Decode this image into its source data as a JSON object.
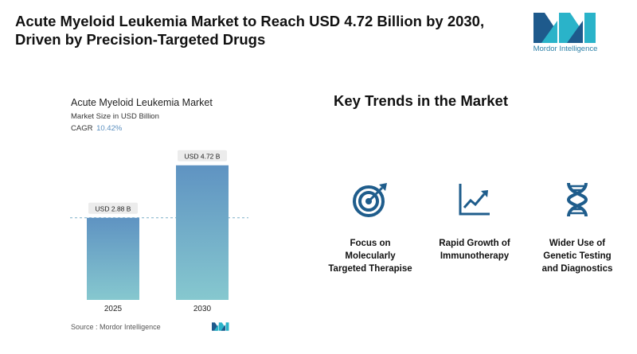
{
  "header": {
    "title_line1": "Acute Myeloid Leukemia Market to Reach USD 4.72 Billion by 2030,",
    "title_line2": "Driven by Precision-Targeted Drugs"
  },
  "logo": {
    "text": "Mordor Intelligence",
    "colors": [
      "#1e5a8c",
      "#2ab3c9"
    ]
  },
  "chart_data": {
    "type": "bar",
    "title": "Acute Myeloid Leukemia Market",
    "subtitle": "Market Size in USD Billion",
    "cagr_label": "CAGR",
    "cagr_value": "10.42%",
    "categories": [
      "2025",
      "2030"
    ],
    "values": [
      2.88,
      4.72
    ],
    "data_labels": [
      "USD 2.88 B",
      "USD 4.72 B"
    ],
    "ylim": [
      0,
      5.3
    ],
    "reference_line_at": 2.88,
    "grid": false,
    "bar_gradient": [
      "#5f93c2",
      "#86c8cf"
    ]
  },
  "source": {
    "label": "Source :",
    "name": "Mordor Intelligence"
  },
  "trends": {
    "title": "Key Trends in the Market",
    "icon_color": "#1f5d8c",
    "items": [
      {
        "icon": "target-icon",
        "lines": [
          "Focus on",
          "Molecularly",
          "Targeted Therapise"
        ]
      },
      {
        "icon": "growth-chart-icon",
        "lines": [
          "Rapid Growth of",
          "Immunotherapy"
        ]
      },
      {
        "icon": "dna-icon",
        "lines": [
          "Wider Use of",
          "Genetic Testing",
          "and Diagnostics"
        ]
      }
    ]
  }
}
